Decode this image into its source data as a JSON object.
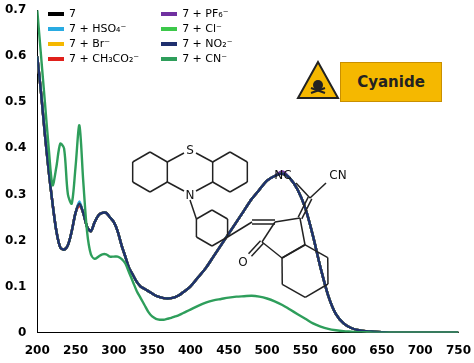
{
  "chart_data": {
    "type": "line",
    "x": [
      200,
      205,
      210,
      215,
      220,
      225,
      230,
      235,
      240,
      245,
      250,
      255,
      260,
      265,
      270,
      275,
      280,
      285,
      290,
      295,
      300,
      305,
      310,
      315,
      320,
      325,
      330,
      335,
      340,
      345,
      350,
      355,
      360,
      365,
      370,
      375,
      380,
      385,
      390,
      395,
      400,
      410,
      420,
      430,
      440,
      450,
      460,
      470,
      480,
      490,
      500,
      510,
      520,
      530,
      540,
      550,
      560,
      570,
      580,
      590,
      600,
      610,
      620,
      630,
      640,
      650,
      660,
      670,
      680,
      690,
      700,
      710,
      720,
      730,
      740,
      750
    ],
    "series": [
      {
        "name": "7",
        "color": "#000000",
        "values": [
          0.6,
          0.52,
          0.43,
          0.35,
          0.28,
          0.22,
          0.185,
          0.18,
          0.19,
          0.22,
          0.26,
          0.28,
          0.26,
          0.23,
          0.22,
          0.24,
          0.255,
          0.26,
          0.26,
          0.25,
          0.24,
          0.22,
          0.19,
          0.165,
          0.14,
          0.125,
          0.11,
          0.1,
          0.095,
          0.09,
          0.085,
          0.08,
          0.077,
          0.075,
          0.074,
          0.075,
          0.077,
          0.081,
          0.087,
          0.093,
          0.1,
          0.12,
          0.14,
          0.165,
          0.19,
          0.215,
          0.24,
          0.265,
          0.29,
          0.31,
          0.33,
          0.34,
          0.345,
          0.335,
          0.31,
          0.27,
          0.21,
          0.14,
          0.08,
          0.04,
          0.02,
          0.01,
          0.005,
          0.003,
          0.002,
          0.001,
          0,
          0,
          0,
          0,
          0,
          0,
          0,
          0,
          0,
          0
        ]
      },
      {
        "name": "7 + HSO₄⁻",
        "color": "#29abe2",
        "values": [
          0.6,
          0.52,
          0.43,
          0.35,
          0.28,
          0.22,
          0.185,
          0.18,
          0.19,
          0.22,
          0.26,
          0.285,
          0.26,
          0.23,
          0.22,
          0.24,
          0.255,
          0.26,
          0.26,
          0.25,
          0.24,
          0.22,
          0.19,
          0.165,
          0.14,
          0.125,
          0.11,
          0.1,
          0.095,
          0.09,
          0.085,
          0.08,
          0.077,
          0.075,
          0.074,
          0.075,
          0.077,
          0.081,
          0.087,
          0.093,
          0.1,
          0.12,
          0.14,
          0.165,
          0.19,
          0.215,
          0.24,
          0.265,
          0.29,
          0.31,
          0.33,
          0.34,
          0.345,
          0.335,
          0.31,
          0.27,
          0.21,
          0.14,
          0.08,
          0.04,
          0.02,
          0.01,
          0.005,
          0.003,
          0.002,
          0.001,
          0,
          0,
          0,
          0,
          0,
          0,
          0,
          0,
          0,
          0
        ]
      },
      {
        "name": "7 + Br⁻",
        "color": "#f5b800",
        "values": [
          0.6,
          0.52,
          0.43,
          0.35,
          0.28,
          0.22,
          0.185,
          0.18,
          0.19,
          0.22,
          0.26,
          0.28,
          0.26,
          0.23,
          0.22,
          0.24,
          0.255,
          0.26,
          0.26,
          0.25,
          0.24,
          0.22,
          0.19,
          0.165,
          0.14,
          0.125,
          0.11,
          0.1,
          0.095,
          0.09,
          0.085,
          0.08,
          0.077,
          0.075,
          0.074,
          0.075,
          0.077,
          0.081,
          0.087,
          0.093,
          0.1,
          0.12,
          0.14,
          0.165,
          0.19,
          0.215,
          0.24,
          0.265,
          0.29,
          0.31,
          0.33,
          0.34,
          0.345,
          0.335,
          0.31,
          0.27,
          0.21,
          0.14,
          0.08,
          0.04,
          0.02,
          0.01,
          0.005,
          0.003,
          0.002,
          0.001,
          0,
          0,
          0,
          0,
          0,
          0,
          0,
          0,
          0,
          0
        ]
      },
      {
        "name": "7 + CH₃CO₂⁻",
        "color": "#e0201b",
        "values": [
          0.6,
          0.52,
          0.43,
          0.35,
          0.28,
          0.22,
          0.185,
          0.18,
          0.19,
          0.22,
          0.26,
          0.275,
          0.26,
          0.23,
          0.22,
          0.24,
          0.255,
          0.26,
          0.26,
          0.25,
          0.24,
          0.22,
          0.19,
          0.165,
          0.14,
          0.125,
          0.11,
          0.1,
          0.095,
          0.09,
          0.085,
          0.08,
          0.077,
          0.075,
          0.074,
          0.075,
          0.077,
          0.081,
          0.087,
          0.093,
          0.1,
          0.12,
          0.14,
          0.165,
          0.19,
          0.215,
          0.24,
          0.265,
          0.29,
          0.31,
          0.33,
          0.34,
          0.345,
          0.335,
          0.31,
          0.27,
          0.21,
          0.14,
          0.08,
          0.04,
          0.02,
          0.01,
          0.005,
          0.003,
          0.002,
          0.001,
          0,
          0,
          0,
          0,
          0,
          0,
          0,
          0,
          0,
          0
        ]
      },
      {
        "name": "7 + PF₆⁻",
        "color": "#7030a0",
        "values": [
          0.6,
          0.52,
          0.43,
          0.35,
          0.28,
          0.22,
          0.185,
          0.18,
          0.19,
          0.22,
          0.26,
          0.28,
          0.26,
          0.23,
          0.22,
          0.24,
          0.255,
          0.26,
          0.26,
          0.25,
          0.24,
          0.22,
          0.19,
          0.165,
          0.14,
          0.125,
          0.11,
          0.1,
          0.095,
          0.09,
          0.085,
          0.08,
          0.077,
          0.075,
          0.074,
          0.075,
          0.077,
          0.081,
          0.087,
          0.093,
          0.1,
          0.12,
          0.14,
          0.165,
          0.19,
          0.215,
          0.24,
          0.265,
          0.29,
          0.31,
          0.33,
          0.34,
          0.35,
          0.335,
          0.31,
          0.27,
          0.21,
          0.14,
          0.08,
          0.04,
          0.02,
          0.01,
          0.005,
          0.003,
          0.002,
          0.001,
          0,
          0,
          0,
          0,
          0,
          0,
          0,
          0,
          0,
          0
        ]
      },
      {
        "name": "7 + Cl⁻",
        "color": "#3cc84a",
        "values": [
          0.6,
          0.52,
          0.43,
          0.35,
          0.28,
          0.22,
          0.185,
          0.18,
          0.19,
          0.22,
          0.26,
          0.28,
          0.26,
          0.23,
          0.22,
          0.24,
          0.255,
          0.26,
          0.26,
          0.25,
          0.24,
          0.22,
          0.19,
          0.165,
          0.14,
          0.125,
          0.11,
          0.1,
          0.095,
          0.09,
          0.085,
          0.08,
          0.077,
          0.075,
          0.074,
          0.075,
          0.077,
          0.081,
          0.087,
          0.093,
          0.1,
          0.12,
          0.14,
          0.165,
          0.19,
          0.215,
          0.24,
          0.265,
          0.29,
          0.31,
          0.33,
          0.34,
          0.345,
          0.335,
          0.31,
          0.27,
          0.21,
          0.14,
          0.08,
          0.04,
          0.02,
          0.01,
          0.005,
          0.003,
          0.002,
          0.001,
          0,
          0,
          0,
          0,
          0,
          0,
          0,
          0,
          0,
          0
        ]
      },
      {
        "name": "7 + NO₂⁻",
        "color": "#1f2f6e",
        "values": [
          0.6,
          0.52,
          0.43,
          0.35,
          0.28,
          0.22,
          0.185,
          0.18,
          0.19,
          0.22,
          0.26,
          0.28,
          0.26,
          0.23,
          0.22,
          0.24,
          0.255,
          0.26,
          0.26,
          0.25,
          0.24,
          0.22,
          0.19,
          0.165,
          0.14,
          0.125,
          0.11,
          0.1,
          0.095,
          0.09,
          0.085,
          0.08,
          0.077,
          0.075,
          0.074,
          0.075,
          0.077,
          0.081,
          0.087,
          0.093,
          0.1,
          0.12,
          0.14,
          0.165,
          0.19,
          0.215,
          0.24,
          0.265,
          0.29,
          0.31,
          0.33,
          0.34,
          0.345,
          0.335,
          0.31,
          0.27,
          0.21,
          0.14,
          0.08,
          0.04,
          0.02,
          0.01,
          0.005,
          0.003,
          0.002,
          0.001,
          0,
          0,
          0,
          0,
          0,
          0,
          0,
          0,
          0,
          0
        ]
      },
      {
        "name": "7 + CN⁻",
        "color": "#2e9e5b",
        "values": [
          0.7,
          0.6,
          0.5,
          0.4,
          0.32,
          0.36,
          0.41,
          0.4,
          0.3,
          0.28,
          0.36,
          0.45,
          0.33,
          0.22,
          0.17,
          0.16,
          0.165,
          0.17,
          0.17,
          0.165,
          0.165,
          0.165,
          0.16,
          0.15,
          0.13,
          0.11,
          0.09,
          0.075,
          0.06,
          0.045,
          0.035,
          0.03,
          0.028,
          0.028,
          0.03,
          0.032,
          0.035,
          0.038,
          0.042,
          0.046,
          0.05,
          0.058,
          0.065,
          0.07,
          0.073,
          0.076,
          0.078,
          0.079,
          0.08,
          0.078,
          0.074,
          0.068,
          0.06,
          0.05,
          0.04,
          0.03,
          0.02,
          0.013,
          0.008,
          0.005,
          0.003,
          0.002,
          0.001,
          0.001,
          0,
          0,
          0,
          0,
          0,
          0,
          0,
          0,
          0,
          0,
          0,
          0
        ]
      }
    ],
    "xlim": [
      200,
      750
    ],
    "xticks": [
      200,
      250,
      300,
      350,
      400,
      450,
      500,
      550,
      600,
      650,
      700,
      750
    ],
    "ylim": [
      0,
      0.7
    ],
    "yticks": [
      0,
      0.1,
      0.2,
      0.3,
      0.4,
      0.5,
      0.6,
      0.7
    ],
    "grid": false,
    "legend": "top",
    "marker": "none",
    "line_style": "solid",
    "annotations": [
      "Cyanide",
      "S",
      "N",
      "NC",
      "CN",
      "O"
    ]
  }
}
